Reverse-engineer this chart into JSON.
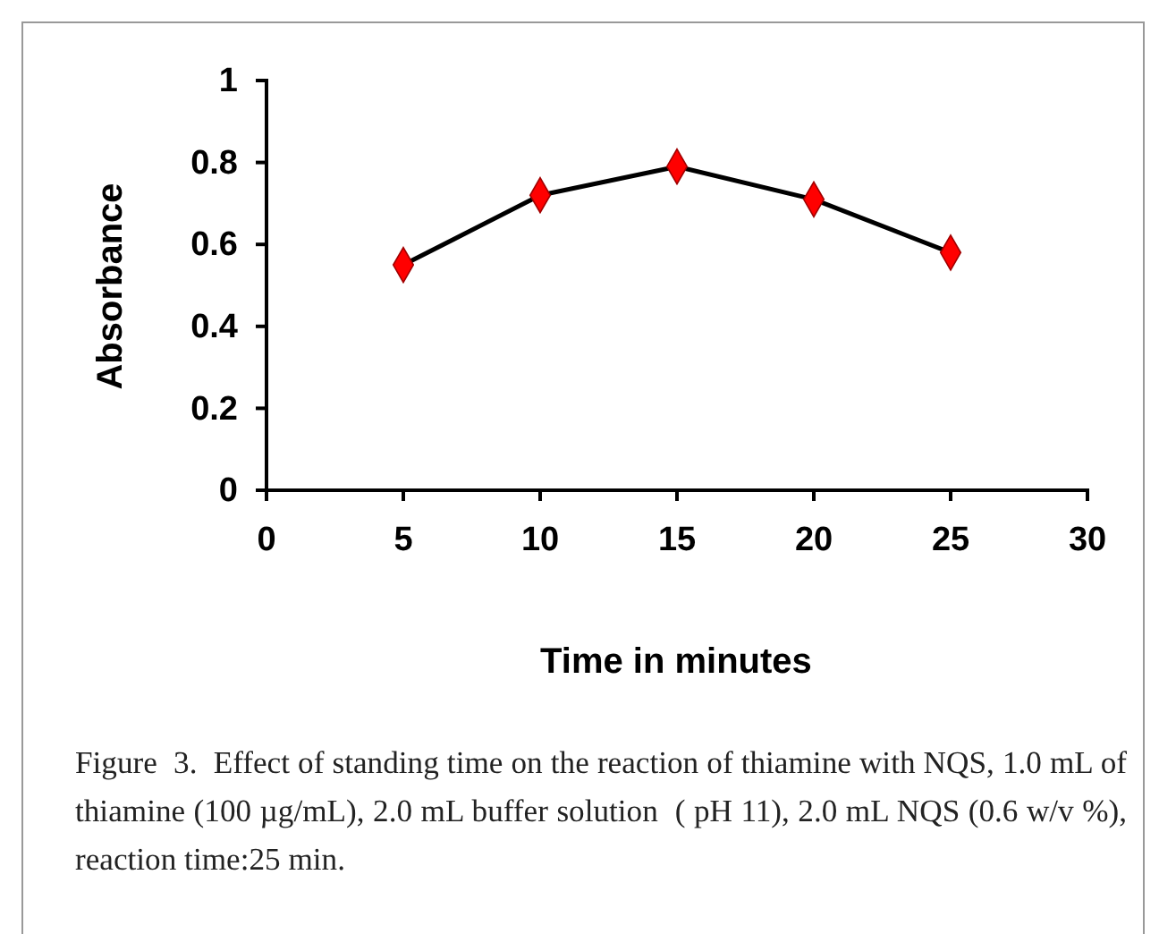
{
  "chart_data": {
    "type": "line",
    "xlabel": "Time in minutes",
    "ylabel": "Absorbance",
    "x": [
      5,
      10,
      15,
      20,
      25
    ],
    "series": [
      {
        "color": "#000000",
        "values": [
          0.55,
          0.72,
          0.79,
          0.71,
          0.58
        ]
      }
    ],
    "marker": "diamond",
    "line_style": "solid",
    "grid": false,
    "xlim": [
      0,
      30
    ],
    "xticks": [
      0,
      5,
      10,
      15,
      20,
      25,
      30
    ],
    "ylim": [
      0,
      1
    ],
    "yticks": [
      0,
      0.2,
      0.4,
      0.6,
      0.8,
      1
    ],
    "annotations": [
      "Figure  3.  Effect of standing time on the reaction of thiamine with NQS, 1.0 mL of thiamine (100 µg/mL), 2.0 mL buffer solution  ( pH 11), 2.0 mL NQS (0.6 w/v %), reaction time:25 min."
    ]
  }
}
